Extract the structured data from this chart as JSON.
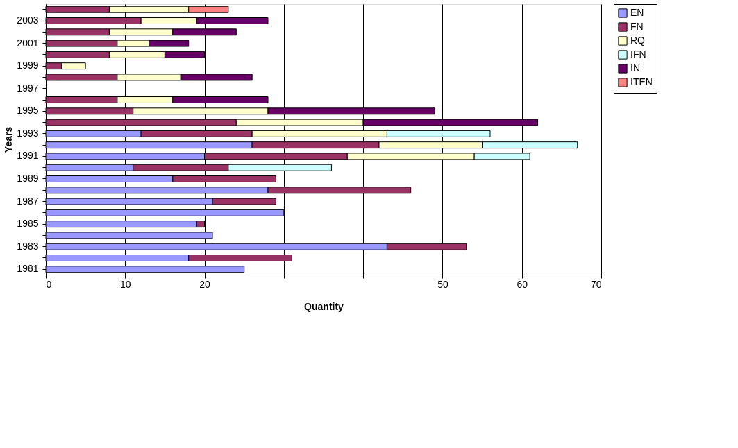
{
  "chart_data": {
    "type": "bar",
    "orientation": "horizontal",
    "stacked": true,
    "xlabel": "Quantity",
    "ylabel": "Years",
    "categories": [
      null,
      "2003",
      null,
      "2001",
      null,
      "1999",
      null,
      "1997",
      null,
      "1995",
      null,
      "1993",
      null,
      "1991",
      null,
      "1989",
      null,
      "1987",
      null,
      "1985",
      null,
      "1983",
      null,
      "1981"
    ],
    "series": [
      {
        "name": "EN",
        "color": "#9999ff",
        "values": [
          null,
          null,
          null,
          null,
          null,
          null,
          null,
          null,
          null,
          null,
          null,
          12,
          26,
          20,
          11,
          16,
          28,
          21,
          30,
          19,
          21,
          43,
          18,
          25
        ]
      },
      {
        "name": "FN",
        "color": "#993366",
        "values": [
          8,
          12,
          8,
          9,
          8,
          2,
          9,
          null,
          9,
          11,
          24,
          14,
          16,
          18,
          12,
          13,
          18,
          8,
          null,
          1,
          null,
          10,
          13,
          null
        ]
      },
      {
        "name": "RQ",
        "color": "#ffffcc",
        "values": [
          10,
          7,
          8,
          4,
          7,
          3,
          8,
          null,
          7,
          17,
          16,
          17,
          13,
          16,
          null,
          null,
          null,
          null,
          null,
          null,
          null,
          null,
          null,
          null
        ]
      },
      {
        "name": "IFN",
        "color": "#ccffff",
        "values": [
          null,
          null,
          null,
          null,
          null,
          null,
          null,
          null,
          null,
          null,
          null,
          13,
          12,
          7,
          13,
          null,
          null,
          null,
          null,
          null,
          null,
          null,
          null,
          null
        ]
      },
      {
        "name": "IN",
        "color": "#660066",
        "values": [
          null,
          9,
          8,
          5,
          5,
          null,
          9,
          null,
          12,
          21,
          22,
          null,
          null,
          null,
          null,
          null,
          null,
          null,
          null,
          null,
          null,
          null,
          null,
          null
        ]
      },
      {
        "name": "ITEN",
        "color": "#ff8080",
        "values": [
          5,
          null,
          null,
          null,
          null,
          null,
          null,
          null,
          null,
          null,
          null,
          null,
          null,
          null,
          null,
          null,
          null,
          null,
          null,
          null,
          null,
          null,
          null,
          null
        ]
      }
    ],
    "xlim": [
      0,
      70
    ],
    "xticks": [
      0,
      10,
      20,
      {
        "value": 30,
        "label": null
      },
      {
        "value": 40,
        "label": null
      },
      50,
      60,
      70
    ],
    "grid": "x",
    "legend": "right"
  }
}
